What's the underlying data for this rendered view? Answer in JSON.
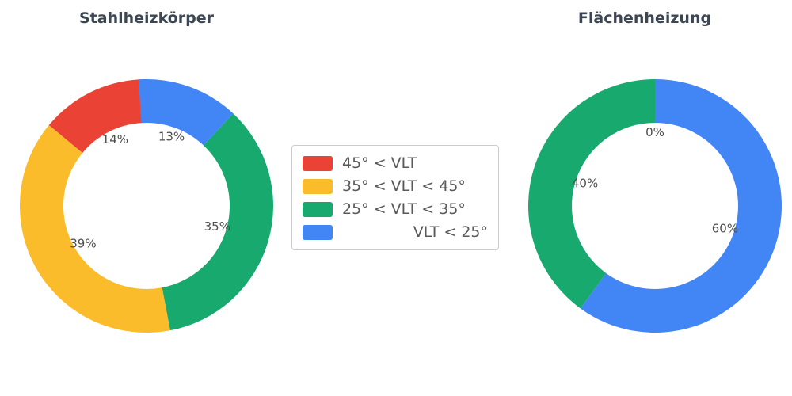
{
  "figure": {
    "background": "#ffffff",
    "label_color": "#4d4d4d",
    "title_color": "#3d4653"
  },
  "chart_data": [
    {
      "type": "pie",
      "hole": 0.66,
      "title": "Stahlheizkörper",
      "labels": [
        "45° < VLT",
        "35° < VLT < 45°",
        "25° < VLT < 35°",
        "VLT < 25°"
      ],
      "values": [
        14,
        39,
        35,
        13
      ],
      "percent_labels": [
        "14%",
        "39%",
        "35%",
        "13%"
      ],
      "colors": [
        "#EA4335",
        "#FBBC2C",
        "#17A96E",
        "#4285F4"
      ]
    },
    {
      "type": "pie",
      "hole": 0.66,
      "title": "Flächenheizung",
      "labels": [
        "45° < VLT",
        "25° < VLT < 35°",
        "VLT < 25°"
      ],
      "values": [
        0,
        40,
        60
      ],
      "percent_labels": [
        "0%",
        "40%",
        "60%"
      ],
      "colors": [
        "#EA4335",
        "#17A96E",
        "#4285F4"
      ]
    }
  ],
  "legend": {
    "items": [
      {
        "label": "45° < VLT",
        "color": "#EA4335"
      },
      {
        "label": "35° < VLT < 45°",
        "color": "#FBBC2C"
      },
      {
        "label": "25° < VLT < 35°",
        "color": "#17A96E"
      },
      {
        "label": "VLT < 25°",
        "color": "#4285F4"
      }
    ]
  }
}
